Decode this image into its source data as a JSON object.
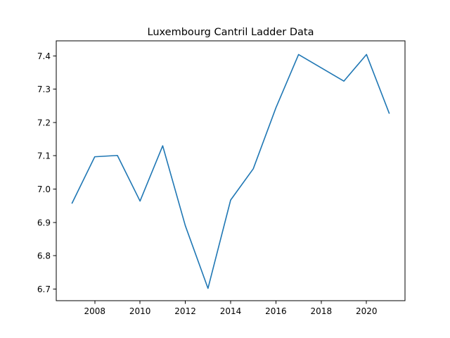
{
  "chart_data": {
    "type": "line",
    "title": "Luxembourg Cantril Ladder Data",
    "xlabel": "",
    "ylabel": "",
    "x": [
      2007,
      2008,
      2009,
      2010,
      2011,
      2012,
      2013,
      2014,
      2015,
      2016,
      2017,
      2018,
      2019,
      2020,
      2021
    ],
    "series": [
      {
        "values": [
          6.958,
          7.097,
          7.101,
          6.964,
          7.13,
          6.89,
          6.702,
          6.967,
          7.061,
          7.244,
          7.404,
          7.364,
          7.324,
          7.404,
          7.228
        ],
        "color": "#1f77b4"
      }
    ],
    "xlim": [
      2006.3,
      2021.7
    ],
    "ylim": [
      6.665,
      7.445
    ],
    "xticks": [
      2008,
      2010,
      2012,
      2014,
      2016,
      2018,
      2020
    ],
    "yticks": [
      6.7,
      6.8,
      6.9,
      7.0,
      7.1,
      7.2,
      7.3,
      7.4
    ],
    "ytick_labels": [
      "6.7",
      "6.8",
      "6.9",
      "7.0",
      "7.1",
      "7.2",
      "7.3",
      "7.4"
    ],
    "grid": false,
    "legend": "none"
  }
}
